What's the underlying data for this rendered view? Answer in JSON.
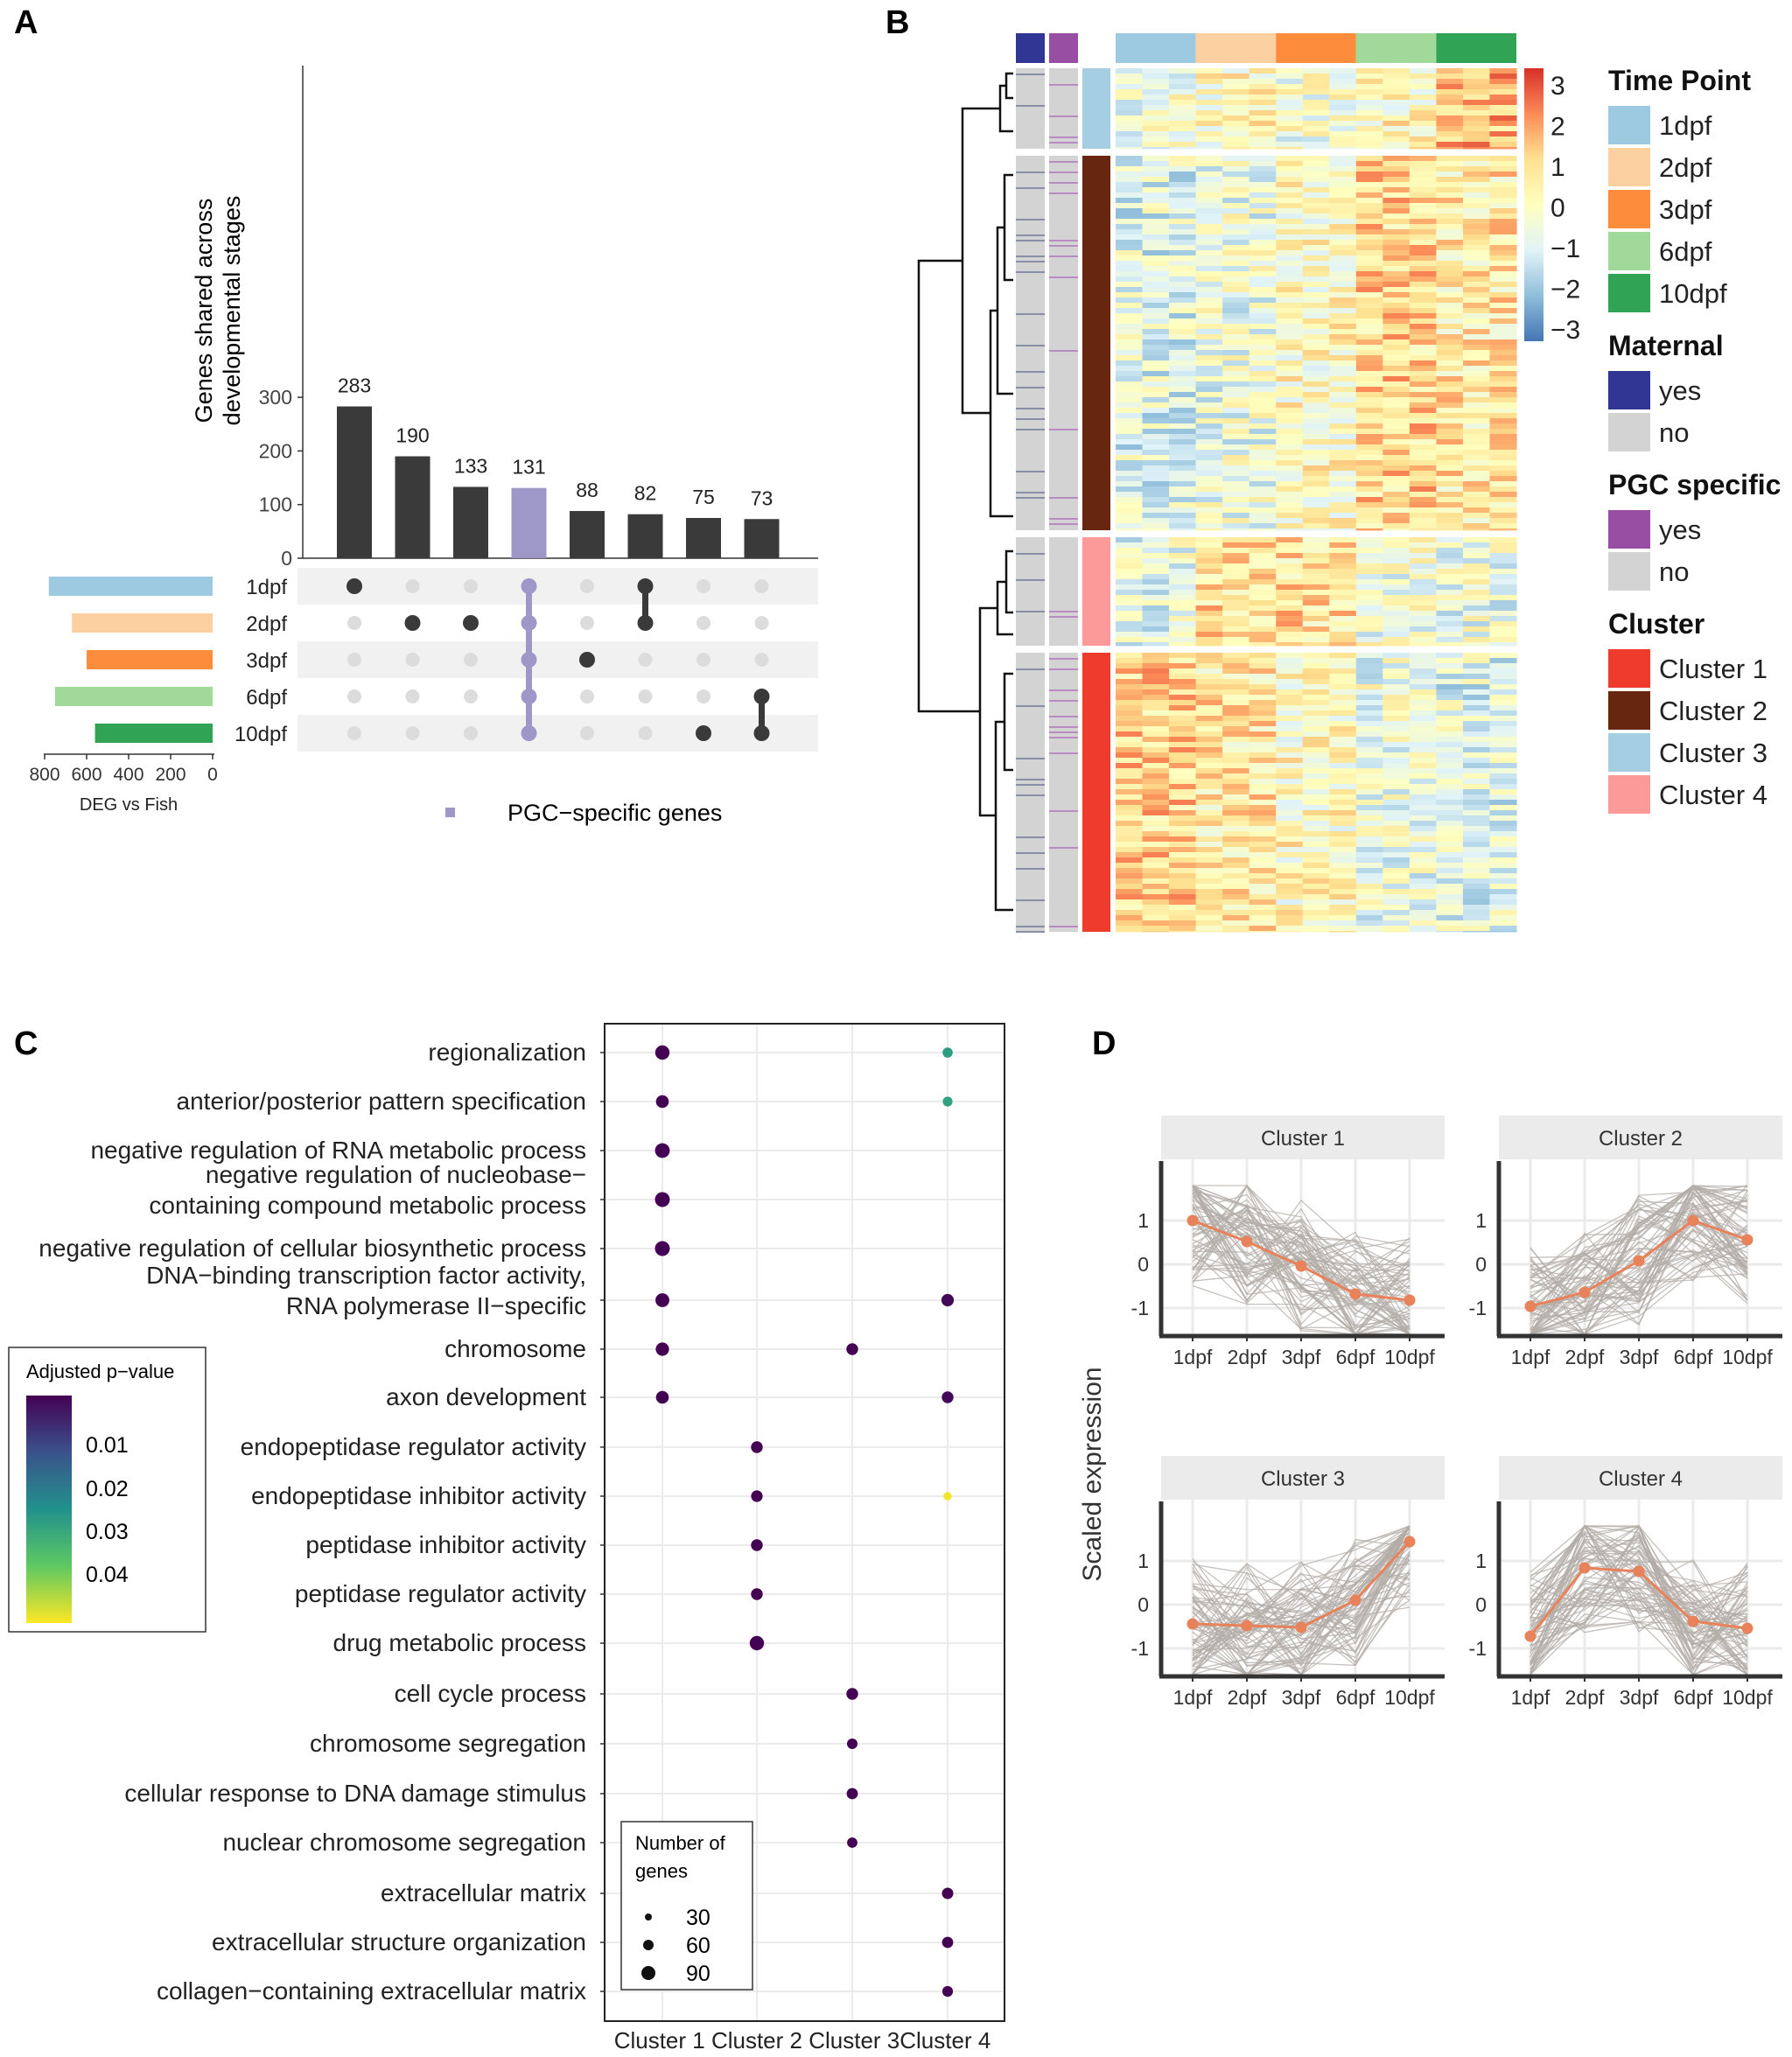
{
  "panel_labels": [
    "A",
    "B",
    "C",
    "D"
  ],
  "colors": {
    "bar_dark": "#3a3a3a",
    "pgc_purple": "#9e98c9",
    "tp_1dpf": "#9ecae1",
    "tp_2dpf": "#fdd0a2",
    "tp_3dpf": "#fd8d3c",
    "tp_6dpf": "#a1d99b",
    "tp_10dpf": "#31a354",
    "maternal_yes": "#313695",
    "grey_no": "#d3d3d3",
    "pgc_yes": "#984ea3",
    "cluster1": "#ef3b2c",
    "cluster2": "#67260f",
    "cluster3": "#a6cee3",
    "cluster4": "#fb9a99",
    "line_orange": "#e8825a",
    "line_grey": "#b3aca7"
  },
  "panelA": {
    "ylabel": [
      "Genes shared across",
      "developmental stages"
    ],
    "yticks": [
      0,
      100,
      200,
      300
    ],
    "bar_values": [
      283,
      190,
      133,
      131,
      88,
      82,
      75,
      73
    ],
    "highlight_index": 3,
    "sets": [
      "1dpf",
      "2dpf",
      "3dpf",
      "6dpf",
      "10dpf"
    ],
    "set_sizes": [
      780,
      670,
      600,
      750,
      560
    ],
    "set_axis_ticks": [
      "800",
      "600",
      "400",
      "200",
      "0"
    ],
    "set_axis_title": "DEG vs Fish",
    "memberships": [
      [
        0
      ],
      [
        1
      ],
      [
        1
      ],
      [
        0,
        1,
        2,
        3,
        4
      ],
      [
        2
      ],
      [
        0,
        1
      ],
      [
        4
      ],
      [
        3,
        4
      ]
    ],
    "legend_label": "PGC−specific genes"
  },
  "panelB": {
    "scale_ticks": [
      "3",
      "2",
      "1",
      "0",
      "−1",
      "−2",
      "−3"
    ],
    "legends": [
      {
        "title": "Time Point",
        "items": [
          [
            "1dpf",
            "#9ecae1"
          ],
          [
            "2dpf",
            "#fdd0a2"
          ],
          [
            "3dpf",
            "#fd8d3c"
          ],
          [
            "6dpf",
            "#a1d99b"
          ],
          [
            "10dpf",
            "#31a354"
          ]
        ]
      },
      {
        "title": "Maternal",
        "items": [
          [
            "yes",
            "#313695"
          ],
          [
            "no",
            "#d3d3d3"
          ]
        ]
      },
      {
        "title": "PGC specific",
        "items": [
          [
            "yes",
            "#984ea3"
          ],
          [
            "no",
            "#d3d3d3"
          ]
        ]
      },
      {
        "title": "Cluster",
        "items": [
          [
            "Cluster 1",
            "#ef3b2c"
          ],
          [
            "Cluster 2",
            "#67260f"
          ],
          [
            "Cluster 3",
            "#a6cee3"
          ],
          [
            "Cluster 4",
            "#fb9a99"
          ]
        ]
      }
    ]
  },
  "panelC": {
    "x_categories": [
      "Cluster 1",
      "Cluster 2",
      "Cluster 3",
      "Cluster 4"
    ],
    "x_tick_text": "Cluster 1 Cluster 2 Cluster 3Cluster 4",
    "terms": [
      [
        "regionalization"
      ],
      [
        "anterior/posterior pattern specification"
      ],
      [
        "negative regulation of RNA metabolic process"
      ],
      [
        "negative regulation of nucleobase−",
        "containing compound metabolic process"
      ],
      [
        "negative regulation of cellular biosynthetic process"
      ],
      [
        "DNA−binding transcription factor activity,",
        "RNA polymerase II−specific"
      ],
      [
        "chromosome"
      ],
      [
        "axon development"
      ],
      [
        "endopeptidase regulator activity"
      ],
      [
        "endopeptidase inhibitor activity"
      ],
      [
        "peptidase inhibitor activity"
      ],
      [
        "peptidase regulator activity"
      ],
      [
        "drug metabolic process"
      ],
      [
        "cell cycle process"
      ],
      [
        "chromosome segregation"
      ],
      [
        "cellular response to DNA damage stimulus"
      ],
      [
        "nuclear chromosome segregation"
      ],
      [
        "extracellular matrix"
      ],
      [
        "extracellular structure organization"
      ],
      [
        "collagen−containing extracellular matrix"
      ]
    ],
    "color_legend_title": "Adjusted p−value",
    "color_legend_ticks": [
      "0.01",
      "0.02",
      "0.03",
      "0.04"
    ],
    "size_legend_title": [
      "Number of",
      "genes"
    ],
    "size_legend_values": [
      "30",
      "60",
      "90"
    ]
  },
  "chart_data": [
    {
      "type": "bar",
      "panel": "A",
      "categories": [
        "1dpf",
        "2dpf",
        "3dpf",
        "1dpf·2dpf·3dpf·6dpf·10dpf",
        "3dpf",
        "1dpf·2dpf",
        "10dpf",
        "6dpf·10dpf"
      ],
      "values": [
        283,
        190,
        133,
        131,
        88,
        82,
        75,
        73
      ],
      "ylabel": "Genes shared across developmental stages",
      "ylim": [
        0,
        320
      ]
    },
    {
      "type": "bar",
      "panel": "A",
      "orientation": "horizontal",
      "categories": [
        "1dpf",
        "2dpf",
        "3dpf",
        "6dpf",
        "10dpf"
      ],
      "values": [
        780,
        670,
        600,
        750,
        560
      ],
      "xlabel": "DEG vs Fish",
      "xlim": [
        800,
        0
      ]
    },
    {
      "type": "heatmap",
      "panel": "B",
      "columns": [
        "1dpf",
        "1dpf",
        "1dpf",
        "2dpf",
        "2dpf",
        "2dpf",
        "3dpf",
        "3dpf",
        "3dpf",
        "6dpf",
        "6dpf",
        "6dpf",
        "10dpf",
        "10dpf",
        "10dpf"
      ],
      "row_clusters": [
        {
          "cluster": "Cluster 3",
          "mean_z": [
            -0.3,
            -0.3,
            -0.3,
            0.1,
            0.1,
            0.1,
            -0.3,
            -0.3,
            -0.3,
            0.2,
            0.2,
            0.2,
            1.4,
            1.4,
            1.4
          ]
        },
        {
          "cluster": "Cluster 2",
          "mean_z": [
            -0.8,
            -0.8,
            -0.8,
            -0.5,
            -0.5,
            -0.5,
            0.1,
            0.1,
            0.1,
            1.0,
            1.0,
            1.0,
            0.6,
            0.6,
            0.6
          ]
        },
        {
          "cluster": "Cluster 4",
          "mean_z": [
            -0.6,
            -0.6,
            -0.6,
            0.9,
            0.9,
            0.9,
            0.8,
            0.8,
            0.8,
            -0.3,
            -0.3,
            -0.3,
            -0.5,
            -0.5,
            -0.5
          ]
        },
        {
          "cluster": "Cluster 1",
          "mean_z": [
            1.0,
            1.0,
            1.0,
            0.6,
            0.6,
            0.6,
            0.1,
            0.1,
            0.1,
            -0.5,
            -0.5,
            -0.5,
            -0.8,
            -0.8,
            -0.8
          ]
        }
      ],
      "color_range": [
        -3,
        3
      ]
    },
    {
      "type": "scatter",
      "panel": "C",
      "x_categories": [
        "Cluster 1",
        "Cluster 2",
        "Cluster 3",
        "Cluster 4"
      ],
      "points": [
        {
          "term": 0,
          "cluster": 0,
          "genes": 90,
          "padj": 0.001
        },
        {
          "term": 0,
          "cluster": 3,
          "genes": 25,
          "padj": 0.028
        },
        {
          "term": 1,
          "cluster": 0,
          "genes": 60,
          "padj": 0.001
        },
        {
          "term": 1,
          "cluster": 3,
          "genes": 22,
          "padj": 0.029
        },
        {
          "term": 2,
          "cluster": 0,
          "genes": 95,
          "padj": 0.001
        },
        {
          "term": 3,
          "cluster": 0,
          "genes": 100,
          "padj": 0.001
        },
        {
          "term": 4,
          "cluster": 0,
          "genes": 100,
          "padj": 0.001
        },
        {
          "term": 5,
          "cluster": 0,
          "genes": 80,
          "padj": 0.001
        },
        {
          "term": 5,
          "cluster": 3,
          "genes": 55,
          "padj": 0.002
        },
        {
          "term": 6,
          "cluster": 0,
          "genes": 70,
          "padj": 0.001
        },
        {
          "term": 6,
          "cluster": 2,
          "genes": 45,
          "padj": 0.001
        },
        {
          "term": 7,
          "cluster": 0,
          "genes": 60,
          "padj": 0.001
        },
        {
          "term": 7,
          "cluster": 3,
          "genes": 45,
          "padj": 0.002
        },
        {
          "term": 8,
          "cluster": 1,
          "genes": 45,
          "padj": 0.001
        },
        {
          "term": 9,
          "cluster": 1,
          "genes": 42,
          "padj": 0.001
        },
        {
          "term": 9,
          "cluster": 3,
          "genes": 10,
          "padj": 0.049
        },
        {
          "term": 10,
          "cluster": 1,
          "genes": 45,
          "padj": 0.001
        },
        {
          "term": 11,
          "cluster": 1,
          "genes": 45,
          "padj": 0.001
        },
        {
          "term": 12,
          "cluster": 1,
          "genes": 90,
          "padj": 0.001
        },
        {
          "term": 13,
          "cluster": 2,
          "genes": 45,
          "padj": 0.001
        },
        {
          "term": 14,
          "cluster": 2,
          "genes": 30,
          "padj": 0.001
        },
        {
          "term": 15,
          "cluster": 2,
          "genes": 38,
          "padj": 0.001
        },
        {
          "term": 16,
          "cluster": 2,
          "genes": 28,
          "padj": 0.001
        },
        {
          "term": 17,
          "cluster": 3,
          "genes": 40,
          "padj": 0.001
        },
        {
          "term": 18,
          "cluster": 3,
          "genes": 38,
          "padj": 0.001
        },
        {
          "term": 19,
          "cluster": 3,
          "genes": 32,
          "padj": 0.001
        }
      ],
      "color_label": "Adjusted p−value",
      "size_label": "Number of genes"
    },
    {
      "type": "line",
      "panel": "D",
      "ylabel": "Scaled expression",
      "x": [
        "1dpf",
        "2dpf",
        "3dpf",
        "6dpf",
        "10dpf"
      ],
      "yticks": [
        -1,
        0,
        1
      ],
      "ylim": [
        -1.9,
        1.9
      ],
      "series": [
        {
          "name": "Cluster 1",
          "values": [
            1.0,
            0.52,
            -0.04,
            -0.68,
            -0.82
          ]
        },
        {
          "name": "Cluster 2",
          "values": [
            -0.96,
            -0.64,
            0.08,
            1.0,
            0.56
          ]
        },
        {
          "name": "Cluster 3",
          "values": [
            -0.44,
            -0.48,
            -0.52,
            0.1,
            1.44
          ]
        },
        {
          "name": "Cluster 4",
          "values": [
            -0.72,
            0.84,
            0.76,
            -0.38,
            -0.54
          ]
        }
      ]
    }
  ]
}
